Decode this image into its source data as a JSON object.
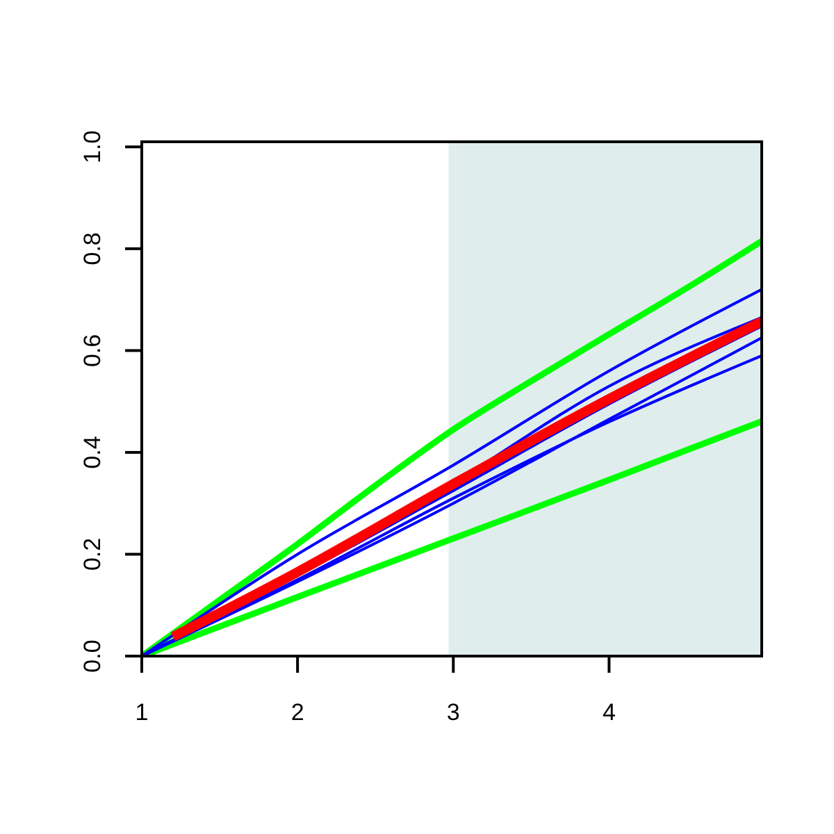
{
  "chart_data": {
    "type": "line",
    "xlim": [
      1,
      4.98
    ],
    "ylim": [
      0,
      1.01
    ],
    "xticks": [
      1,
      2,
      3,
      4
    ],
    "yticks": [
      {
        "value": 0,
        "label": "0.0"
      },
      {
        "value": 0.2,
        "label": "0.2"
      },
      {
        "value": 0.4,
        "label": "0.4"
      },
      {
        "value": 0.6,
        "label": "0.6"
      },
      {
        "value": 0.8,
        "label": "0.8"
      },
      {
        "value": 1,
        "label": "1.0"
      }
    ],
    "grid": false,
    "marker": "none",
    "line_style": "solid",
    "bands": [
      {
        "axis": "x",
        "from": 2.97,
        "to": 4.98,
        "color": "#e0eded"
      }
    ],
    "series": [
      {
        "color": "#00ff00",
        "x": [
          1,
          1.5,
          2,
          2.5,
          3,
          3.5,
          4,
          4.5,
          4.98
        ],
        "values": [
          0,
          0.11,
          0.22,
          0.335,
          0.445,
          0.54,
          0.632,
          0.723,
          0.815
        ]
      },
      {
        "color": "#00ff00",
        "x": [
          1,
          2,
          3,
          4,
          4.98
        ],
        "values": [
          0,
          0.116,
          0.231,
          0.346,
          0.461
        ]
      },
      {
        "color": "#0000ff",
        "x": [
          1,
          2,
          3,
          4,
          4.98
        ],
        "values": [
          0,
          0.2,
          0.375,
          0.56,
          0.72
        ]
      },
      {
        "color": "#0000ff",
        "x": [
          1,
          2,
          3,
          4,
          4.98
        ],
        "values": [
          0,
          0.16,
          0.34,
          0.53,
          0.665
        ]
      },
      {
        "color": "#0000ff",
        "x": [
          1,
          2,
          3,
          4,
          4.98
        ],
        "values": [
          0,
          0.158,
          0.325,
          0.495,
          0.648
        ]
      },
      {
        "color": "#0000ff",
        "x": [
          1,
          2,
          3,
          4,
          4.98
        ],
        "values": [
          0,
          0.146,
          0.3,
          0.465,
          0.625
        ]
      },
      {
        "color": "#0000ff",
        "x": [
          1,
          2,
          3,
          4,
          4.98
        ],
        "values": [
          0,
          0.15,
          0.31,
          0.46,
          0.59
        ]
      },
      {
        "color": "#ff0000",
        "x": [
          1.2,
          2,
          3,
          4,
          4.98
        ],
        "values": [
          0.038,
          0.165,
          0.338,
          0.505,
          0.657
        ]
      }
    ]
  }
}
